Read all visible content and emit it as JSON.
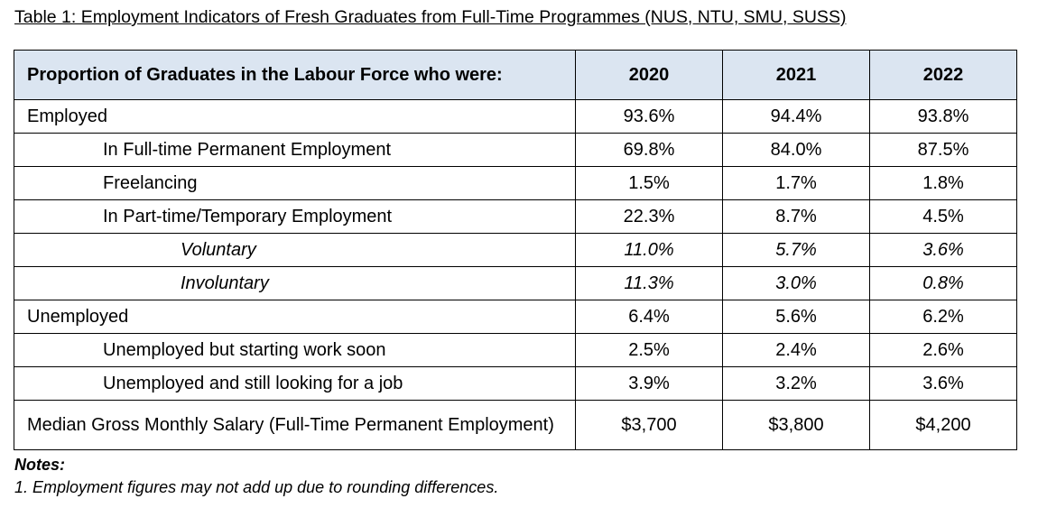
{
  "title": "Table 1: Employment Indicators of Fresh Graduates from Full-Time Programmes (NUS, NTU, SMU, SUSS)",
  "table": {
    "header": [
      "Proportion of Graduates in the Labour Force who were:",
      "2020",
      "2021",
      "2022"
    ],
    "rows": [
      [
        "Employed",
        "93.6%",
        "94.4%",
        "93.8%"
      ],
      [
        "In Full-time Permanent Employment",
        "69.8%",
        "84.0%",
        "87.5%"
      ],
      [
        "Freelancing",
        "1.5%",
        "1.7%",
        "1.8%"
      ],
      [
        "In Part-time/Temporary Employment",
        "22.3%",
        "8.7%",
        "4.5%"
      ],
      [
        "Voluntary",
        "11.0%",
        "5.7%",
        "3.6%"
      ],
      [
        "Involuntary",
        "11.3%",
        "3.0%",
        "0.8%"
      ],
      [
        "Unemployed",
        "6.4%",
        "5.6%",
        "6.2%"
      ],
      [
        "Unemployed but starting work soon",
        "2.5%",
        "2.4%",
        "2.6%"
      ],
      [
        "Unemployed and still looking for a job",
        "3.9%",
        "3.2%",
        "3.6%"
      ],
      [
        "Median Gross Monthly Salary (Full-Time Permanent Employment)",
        "$3,700",
        "$3,800",
        "$4,200"
      ]
    ]
  },
  "notes": {
    "heading": "Notes:",
    "items": [
      "1. Employment figures may not add up due to rounding differences."
    ]
  }
}
